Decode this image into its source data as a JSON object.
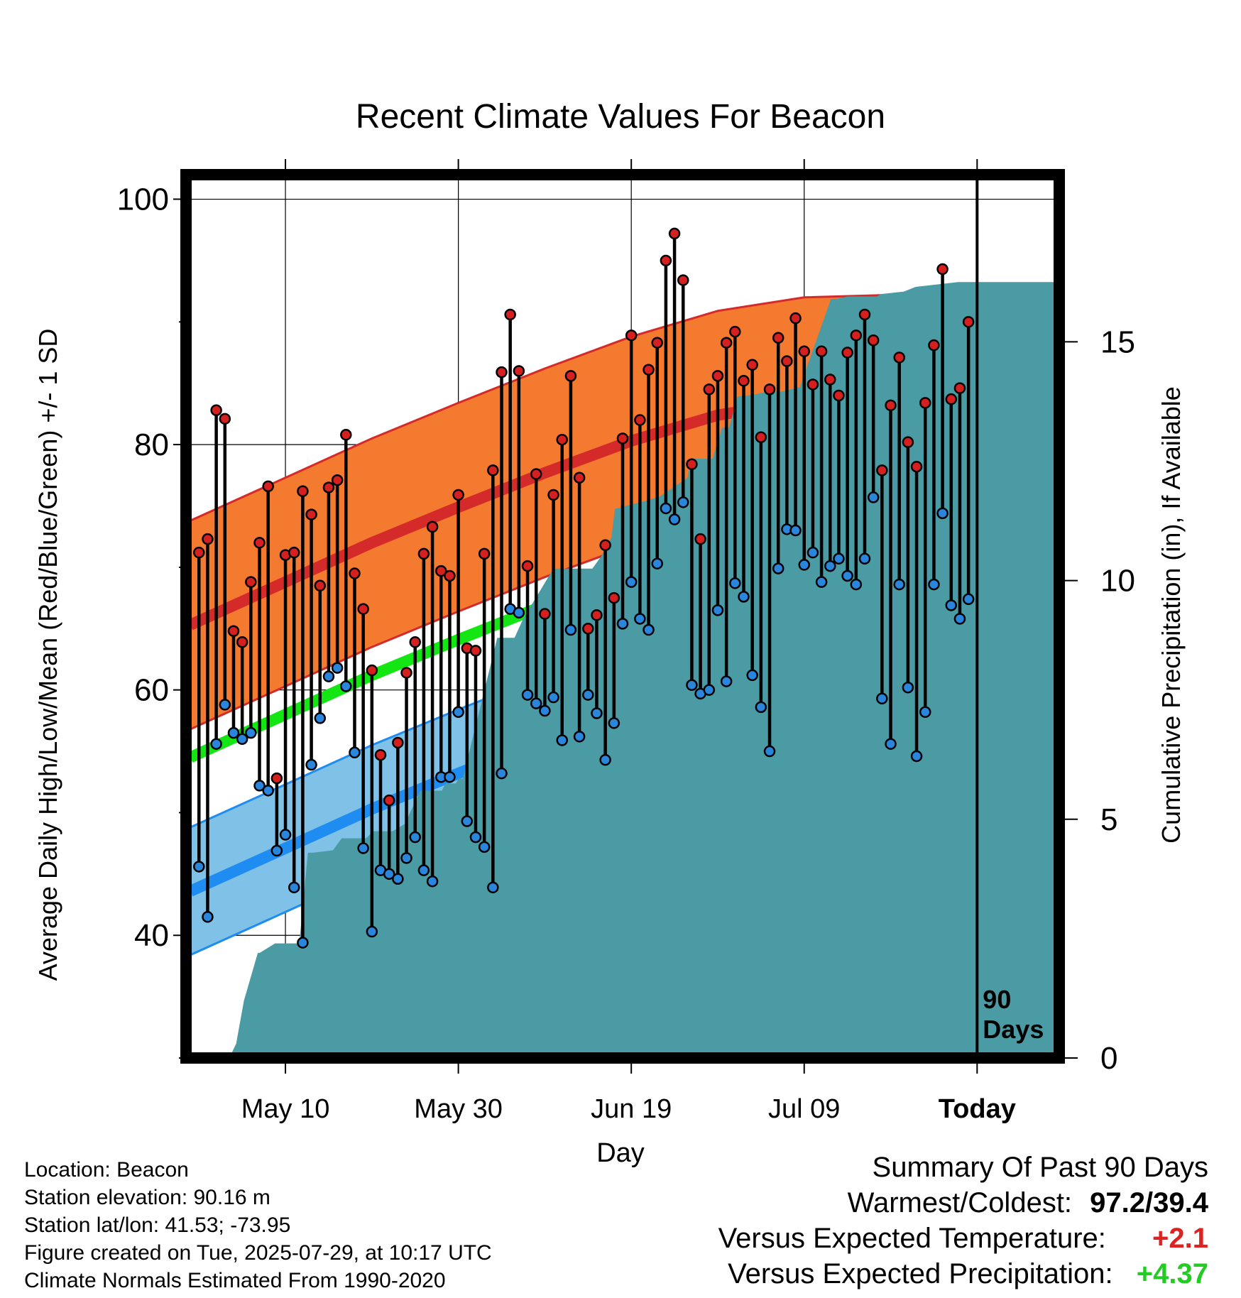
{
  "chart_data": {
    "type": "line",
    "title": "Recent Climate Values For Beacon",
    "xlabel": "Day",
    "ylabel": "Average Daily High/Low/Mean (Red/Blue/Green) +/- 1 SD",
    "y2label": "Cumulative Precipitation (in), If Available",
    "ylim": [
      30,
      102
    ],
    "y_ticks": [
      100,
      80,
      60,
      40
    ],
    "y2lim": [
      0,
      18.5
    ],
    "y2_ticks": [
      15,
      10,
      5,
      0
    ],
    "x_tick_labels": [
      "May 10",
      "May 30",
      "Jun 19",
      "Jul 09",
      "Today"
    ],
    "x_tick_days": [
      -80,
      -60,
      -40,
      -20,
      0
    ],
    "xlim": [
      -91.5,
      9.5
    ],
    "today_marker": "90\nDays",
    "grid": true,
    "colors": {
      "high": "#d42a2a",
      "high_band": "#f47a30",
      "low": "#1e8cf0",
      "low_band": "#80c1e7",
      "mean": "#14e614",
      "precip": "#4a9ba4",
      "dot_high": "#d62020",
      "dot_low": "#2a85dd"
    },
    "normals": {
      "day": [
        -91,
        -80,
        -70,
        -60,
        -50,
        -40,
        -30,
        -20,
        -10,
        0,
        9
      ],
      "high": [
        65.3,
        68.8,
        72.0,
        74.9,
        77.7,
        80.3,
        82.4,
        83.5,
        83.7,
        83.2,
        82.3
      ],
      "high_sd": 8.5,
      "low": [
        43.6,
        47.1,
        50.3,
        53.2,
        56.0,
        58.6,
        60.7,
        61.8,
        62.0,
        61.5,
        60.6
      ],
      "low_sd": 5.2,
      "mean": [
        54.5,
        58.0,
        61.2,
        64.1,
        66.9,
        69.5,
        71.6,
        72.6,
        72.9,
        72.4,
        71.5
      ]
    },
    "daily": {
      "start_day": -90,
      "highs": [
        71.2,
        72.3,
        82.8,
        82.1,
        64.8,
        63.9,
        68.8,
        72.0,
        76.6,
        52.8,
        71.0,
        71.2,
        76.2,
        74.3,
        68.5,
        76.5,
        77.1,
        80.8,
        69.5,
        66.6,
        61.6,
        54.7,
        51.0,
        55.7,
        61.4,
        63.9,
        71.1,
        73.3,
        69.7,
        69.3,
        75.9,
        63.4,
        63.2,
        71.1,
        77.9,
        85.9,
        90.6,
        86.0,
        70.1,
        77.6,
        66.2,
        75.9,
        80.4,
        85.6,
        77.3,
        65.0,
        66.1,
        71.8,
        67.5,
        80.5,
        88.9,
        82.0,
        86.1,
        88.3,
        95.0,
        97.2,
        93.4,
        78.4,
        72.3,
        84.5,
        85.6,
        88.3,
        89.2,
        85.2,
        86.5,
        80.6,
        84.5,
        88.7,
        86.8,
        90.3,
        87.6,
        84.9,
        87.6,
        85.3,
        84.0,
        87.5,
        88.9,
        90.6,
        88.5,
        77.9,
        83.2,
        87.1,
        80.2,
        78.2,
        83.4,
        88.1,
        94.3,
        83.7,
        84.6,
        90.0
      ],
      "lows": [
        45.6,
        41.5,
        55.6,
        58.8,
        56.5,
        56.0,
        56.5,
        52.2,
        51.8,
        46.9,
        48.2,
        43.9,
        39.4,
        53.9,
        57.7,
        61.1,
        61.8,
        60.3,
        54.9,
        47.1,
        40.3,
        45.3,
        45.0,
        44.6,
        46.3,
        48.0,
        45.3,
        44.4,
        52.9,
        52.9,
        58.2,
        49.3,
        48.0,
        47.2,
        43.9,
        53.2,
        66.6,
        66.3,
        59.6,
        58.9,
        58.3,
        59.4,
        55.9,
        64.9,
        56.2,
        59.6,
        58.1,
        54.3,
        57.3,
        65.4,
        68.8,
        65.8,
        64.9,
        70.3,
        74.8,
        73.9,
        75.3,
        60.4,
        59.7,
        60.0,
        66.5,
        60.7,
        68.7,
        67.6,
        61.2,
        58.6,
        55.0,
        69.9,
        73.1,
        73.0,
        70.2,
        71.2,
        68.8,
        70.1,
        70.7,
        69.3,
        68.6,
        70.7,
        75.7,
        59.3,
        55.6,
        68.6,
        60.2,
        54.6,
        58.2,
        68.6,
        74.4,
        66.9,
        65.8,
        67.4
      ]
    },
    "precip_cumulative": {
      "day": [
        -90,
        -86.5,
        -85.7,
        -84.8,
        -83.2,
        -83.0,
        -81.2,
        -80.9,
        -78.4,
        -77.4,
        -76.8,
        -74.5,
        -73.5,
        -70.7,
        -69.8,
        -68.6,
        -67.6,
        -66.2,
        -64.4,
        -61.9,
        -61.5,
        -60.3,
        -60.0,
        -59.5,
        -55.5,
        -54.7,
        -53.5,
        -52.5,
        -50.0,
        -49.0,
        -45.3,
        -44.5,
        -43.5,
        -42.3,
        -41.9,
        -40.9,
        -38.7,
        -36.8,
        -33.5,
        -33.1,
        -30.6,
        -29.5,
        -28.7,
        -27.7,
        -25.6,
        -24.5,
        -22.8,
        -21.7,
        -20.5,
        -16.9,
        -16.3,
        -15.0,
        -11.6,
        -11.1,
        -8.5,
        -7.1,
        -2.2,
        -1.3,
        0,
        9
      ],
      "value": [
        0,
        0,
        0.3,
        1.2,
        2.2,
        2.2,
        2.4,
        2.4,
        2.4,
        4.3,
        4.3,
        4.35,
        4.6,
        4.6,
        4.75,
        4.75,
        4.75,
        4.9,
        5.6,
        5.6,
        5.75,
        5.75,
        5.85,
        5.85,
        8.8,
        8.8,
        8.8,
        9.2,
        9.95,
        10.25,
        10.25,
        10.25,
        10.5,
        10.9,
        11.5,
        11.55,
        11.65,
        11.75,
        12.15,
        12.55,
        12.55,
        13.2,
        13.2,
        13.85,
        13.9,
        13.95,
        13.95,
        14.0,
        14.05,
        15.9,
        15.9,
        15.95,
        15.95,
        16.0,
        16.05,
        16.15,
        16.25,
        16.25,
        16.25,
        16.25
      ]
    }
  },
  "info": {
    "location": "Location: Beacon",
    "elevation": "Station elevation: 90.16 m",
    "latlon": "Station lat/lon: 41.53; -73.95",
    "created": "Figure created on Tue, 2025-07-29, at 10:17 UTC",
    "normals": "Climate Normals Estimated From 1990-2020"
  },
  "summary": {
    "title": "Summary Of Past 90 Days",
    "warmest_coldest_label": "Warmest/Coldest:",
    "warmest_coldest_value": "97.2/39.4",
    "temp_label": "Versus Expected Temperature:",
    "temp_value": "+2.1",
    "temp_color": "#dd2222",
    "precip_label": "Versus Expected Precipitation:",
    "precip_value": "+4.37",
    "precip_color": "#22cc22"
  }
}
